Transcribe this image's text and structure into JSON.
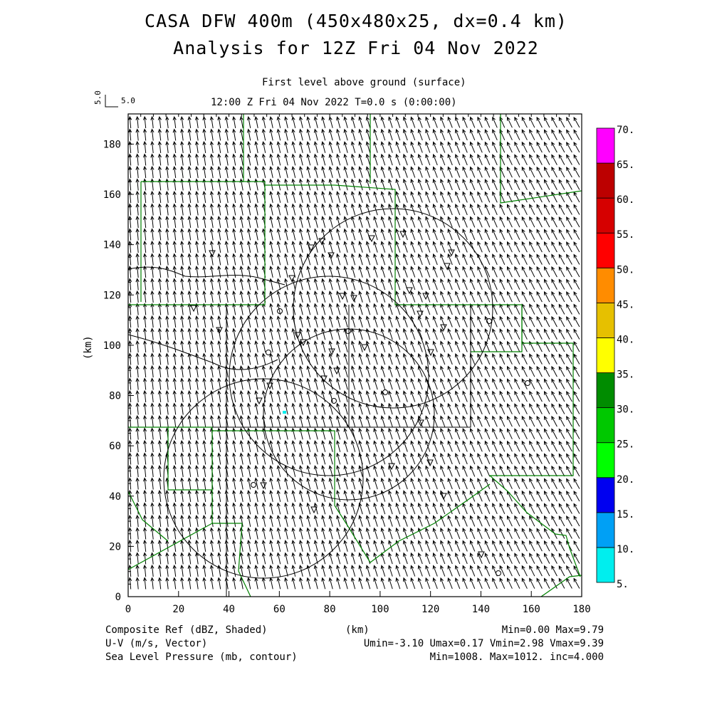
{
  "header": {
    "title_line1": "CASA DFW 400m (450x480x25, dx=0.4 km)",
    "title_line2": "Analysis for 12Z Fri 04 Nov 2022",
    "subtitle_level": "First level above ground (surface)",
    "subtitle_time": "12:00 Z Fri 04 Nov 2022    T=0.0 s (0:00:00)",
    "vector_ref_vertical": "5.0",
    "vector_ref_horizontal": "5.0"
  },
  "chart_data": {
    "type": "heatmap",
    "title": "CASA DFW 400m (450x480x25, dx=0.4 km) Analysis for 12Z Fri 04 Nov 2022",
    "xlabel": "(km)",
    "ylabel": "(km)",
    "xlim": [
      0,
      180
    ],
    "ylim": [
      0,
      192
    ],
    "xticks": [
      "0",
      "20",
      "40",
      "60",
      "80",
      "100",
      "120",
      "140",
      "160",
      "180"
    ],
    "yticks": [
      "0",
      "20",
      "40",
      "60",
      "80",
      "100",
      "120",
      "140",
      "160",
      "180"
    ],
    "colorbar": {
      "labels": [
        "5.",
        "10.",
        "15.",
        "20.",
        "25.",
        "30.",
        "35.",
        "40.",
        "45.",
        "50.",
        "55.",
        "60.",
        "65.",
        "70."
      ],
      "colors": [
        "#00eeee",
        "#00a0f5",
        "#0000f0",
        "#00ff00",
        "#00c800",
        "#008c00",
        "#ffff00",
        "#e6c000",
        "#ff8c00",
        "#ff0000",
        "#d60000",
        "#bc0000",
        "#ff00ff"
      ]
    },
    "vector": {
      "u_mean": -1.5,
      "v_mean": 6.0
    }
  },
  "footer": {
    "field1_name": "Composite Ref (dBZ, Shaded)",
    "field1_stats": "Min=0.00 Max=9.79",
    "field2_name": "U-V (m/s, Vector)",
    "field2_stats": "Umin=-3.10 Umax=0.17 Vmin=2.98 Vmax=9.39",
    "field3_name": "Sea Level Pressure (mb, contour)",
    "field3_stats": "Min=1008. Max=1012. inc=4.000",
    "xaxis_unit": "(km)"
  }
}
